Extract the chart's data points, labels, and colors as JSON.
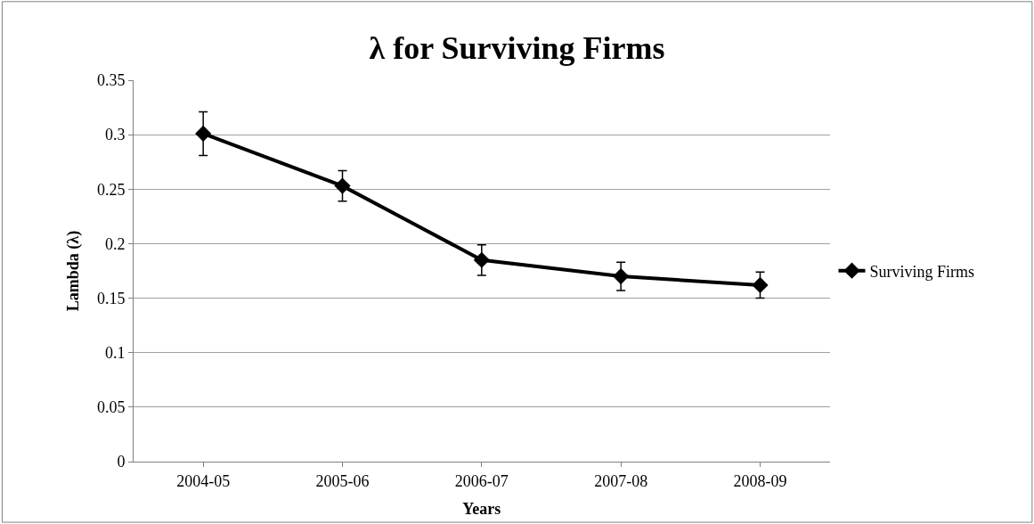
{
  "chart_data": {
    "type": "line",
    "title": "λ for Surviving Firms",
    "xlabel": "Years",
    "ylabel": "Lambda (λ)",
    "categories": [
      "2004-05",
      "2005-06",
      "2006-07",
      "2007-08",
      "2008-09"
    ],
    "series": [
      {
        "name": "Surviving Firms",
        "color": "#000000",
        "values": [
          0.301,
          0.253,
          0.185,
          0.17,
          0.162
        ],
        "errors": [
          0.02,
          0.014,
          0.014,
          0.013,
          0.012
        ]
      }
    ],
    "ylim": [
      0,
      0.35
    ],
    "yticks": [
      0,
      0.05,
      0.1,
      0.15,
      0.2,
      0.25,
      0.3,
      0.35
    ],
    "grid": "y",
    "legend": "right",
    "marker": "diamond",
    "line_style": "solid"
  }
}
